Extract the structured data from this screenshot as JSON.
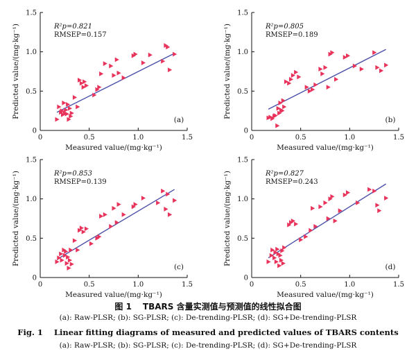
{
  "chart_data": [
    {
      "type": "scatter",
      "panel": "(a)",
      "xlabel": "Measured value/(mg·kg⁻¹)",
      "ylabel": "Predicted value/(mg·kg⁻¹)",
      "xlim": [
        0,
        1.5
      ],
      "ylim": [
        0,
        1.5
      ],
      "xticks": [
        "0",
        "0.5",
        "1.0",
        "1.5"
      ],
      "yticks": [
        "0",
        "0.5",
        "1.0",
        "1.5"
      ],
      "stats": [
        "R²p=0.821",
        "RMSEP=0.157"
      ],
      "fit_line": {
        "x": [
          0.17,
          1.37
        ],
        "y": [
          0.23,
          0.98
        ]
      },
      "points": {
        "x": [
          0.17,
          0.19,
          0.21,
          0.22,
          0.23,
          0.24,
          0.25,
          0.26,
          0.27,
          0.28,
          0.29,
          0.3,
          0.31,
          0.32,
          0.35,
          0.38,
          0.4,
          0.42,
          0.44,
          0.45,
          0.47,
          0.55,
          0.58,
          0.6,
          0.62,
          0.66,
          0.72,
          0.75,
          0.78,
          0.8,
          0.85,
          0.95,
          0.97,
          1.05,
          1.12,
          1.25,
          1.28,
          1.3,
          1.32,
          1.37
        ],
        "y": [
          0.14,
          0.3,
          0.23,
          0.25,
          0.2,
          0.35,
          0.22,
          0.26,
          0.21,
          0.33,
          0.14,
          0.28,
          0.18,
          0.22,
          0.42,
          0.3,
          0.64,
          0.6,
          0.55,
          0.62,
          0.57,
          0.45,
          0.52,
          0.55,
          0.72,
          0.85,
          0.82,
          0.7,
          0.9,
          0.73,
          0.67,
          0.95,
          0.97,
          0.86,
          0.96,
          0.88,
          1.08,
          1.06,
          0.77,
          0.97
        ]
      }
    },
    {
      "type": "scatter",
      "panel": "(b)",
      "xlabel": "Measured value/(mg·kg⁻¹)",
      "ylabel": "Predicted value/(mg·kg⁻¹)",
      "xlim": [
        0,
        1.5
      ],
      "ylim": [
        0,
        1.5
      ],
      "xticks": [
        "0",
        "0.5",
        "1.0",
        "1.5"
      ],
      "yticks": [
        "0",
        "0.5",
        "1.0",
        "1.5"
      ],
      "stats": [
        "R²p=0.805",
        "RMSEP=0.189"
      ],
      "fit_line": {
        "x": [
          0.17,
          1.37
        ],
        "y": [
          0.27,
          1.03
        ]
      },
      "points": {
        "x": [
          0.17,
          0.19,
          0.21,
          0.23,
          0.24,
          0.26,
          0.27,
          0.28,
          0.29,
          0.3,
          0.31,
          0.32,
          0.33,
          0.35,
          0.38,
          0.4,
          0.42,
          0.45,
          0.48,
          0.56,
          0.59,
          0.62,
          0.65,
          0.7,
          0.72,
          0.75,
          0.78,
          0.8,
          0.82,
          0.86,
          0.95,
          0.98,
          1.05,
          1.12,
          1.25,
          1.28,
          1.32,
          1.37
        ],
        "y": [
          0.16,
          0.17,
          0.15,
          0.18,
          0.19,
          0.06,
          0.28,
          0.22,
          0.35,
          0.26,
          0.25,
          0.38,
          0.3,
          0.62,
          0.6,
          0.65,
          0.7,
          0.74,
          0.68,
          0.55,
          0.5,
          0.52,
          0.58,
          0.78,
          0.72,
          0.8,
          0.55,
          0.97,
          0.99,
          0.65,
          0.93,
          0.95,
          0.82,
          0.78,
          0.99,
          0.8,
          0.76,
          0.83
        ]
      }
    },
    {
      "type": "scatter",
      "panel": "(c)",
      "xlabel": "Measured value/(mg·kg⁻¹)",
      "ylabel": "Predicted value/(mg·kg⁻¹)",
      "xlim": [
        0,
        1.5
      ],
      "ylim": [
        0,
        1.5
      ],
      "xticks": [
        "0",
        "0.5",
        "1.0",
        "1.5"
      ],
      "yticks": [
        "0",
        "0.5",
        "1.0",
        "1.5"
      ],
      "stats": [
        "R²p=0.853",
        "RMSEP=0.139"
      ],
      "fit_line": {
        "x": [
          0.17,
          1.37
        ],
        "y": [
          0.23,
          1.12
        ]
      },
      "points": {
        "x": [
          0.17,
          0.19,
          0.21,
          0.22,
          0.24,
          0.25,
          0.26,
          0.27,
          0.28,
          0.29,
          0.3,
          0.31,
          0.32,
          0.35,
          0.38,
          0.4,
          0.42,
          0.44,
          0.47,
          0.52,
          0.58,
          0.6,
          0.62,
          0.66,
          0.72,
          0.75,
          0.78,
          0.8,
          0.85,
          0.95,
          0.97,
          1.05,
          1.2,
          1.25,
          1.28,
          1.3,
          1.32,
          1.37
        ],
        "y": [
          0.2,
          0.25,
          0.3,
          0.22,
          0.35,
          0.28,
          0.33,
          0.18,
          0.26,
          0.12,
          0.22,
          0.35,
          0.17,
          0.47,
          0.35,
          0.6,
          0.63,
          0.58,
          0.62,
          0.43,
          0.5,
          0.52,
          0.78,
          0.8,
          0.65,
          0.88,
          0.7,
          0.93,
          0.8,
          0.9,
          0.93,
          1.01,
          0.95,
          1.1,
          0.87,
          1.06,
          0.8,
          0.98
        ]
      }
    },
    {
      "type": "scatter",
      "panel": "(d)",
      "xlabel": "Measured value/(mg·kg⁻¹)",
      "ylabel": "Predicted value/(mg·kg⁻¹)",
      "xlim": [
        0,
        1.5
      ],
      "ylim": [
        0,
        1.5
      ],
      "xticks": [
        "0",
        "0.5",
        "1.0",
        "1.5"
      ],
      "yticks": [
        "0",
        "0.5",
        "1.0",
        "1.5"
      ],
      "stats": [
        "R²p=0.827",
        "RMSEP=0.243"
      ],
      "fit_line": {
        "x": [
          0.17,
          1.37
        ],
        "y": [
          0.25,
          1.19
        ]
      },
      "points": {
        "x": [
          0.17,
          0.2,
          0.21,
          0.23,
          0.24,
          0.25,
          0.26,
          0.27,
          0.28,
          0.29,
          0.3,
          0.31,
          0.32,
          0.33,
          0.38,
          0.4,
          0.42,
          0.45,
          0.5,
          0.55,
          0.6,
          0.62,
          0.65,
          0.7,
          0.75,
          0.78,
          0.8,
          0.82,
          0.85,
          0.9,
          0.95,
          0.98,
          1.08,
          1.2,
          1.25,
          1.28,
          1.3,
          1.37
        ],
        "y": [
          0.2,
          0.28,
          0.35,
          0.25,
          0.32,
          0.2,
          0.36,
          0.3,
          0.15,
          0.28,
          0.22,
          0.34,
          0.18,
          0.38,
          0.67,
          0.7,
          0.72,
          0.68,
          0.48,
          0.52,
          0.6,
          0.88,
          0.65,
          0.9,
          0.95,
          0.75,
          1.0,
          1.03,
          0.72,
          0.85,
          1.05,
          1.08,
          0.95,
          1.12,
          1.1,
          0.92,
          0.85,
          1.01
        ]
      }
    }
  ],
  "captions": {
    "cn_title_label": "图 1",
    "cn_title": "TBARS 含量实测值与预测值的线性拟合图",
    "cn_sub": "(a): Raw-PLSR; (b): SG-PLSR; (c): De-trending-PLSR; (d): SG+De-trending-PLSR",
    "en_title_label": "Fig. 1",
    "en_title": "Linear fitting diagrams of measured and predicted values of TBARS contents",
    "en_sub": "(a): Raw-PLSR; (b): SG-PLSR; (c): De-trending-PLSR; (d): SG+De-trending-PLSR"
  },
  "colors": {
    "marker": "#e8335b",
    "fit_line": "#4a4fa8",
    "axis": "#111111"
  }
}
